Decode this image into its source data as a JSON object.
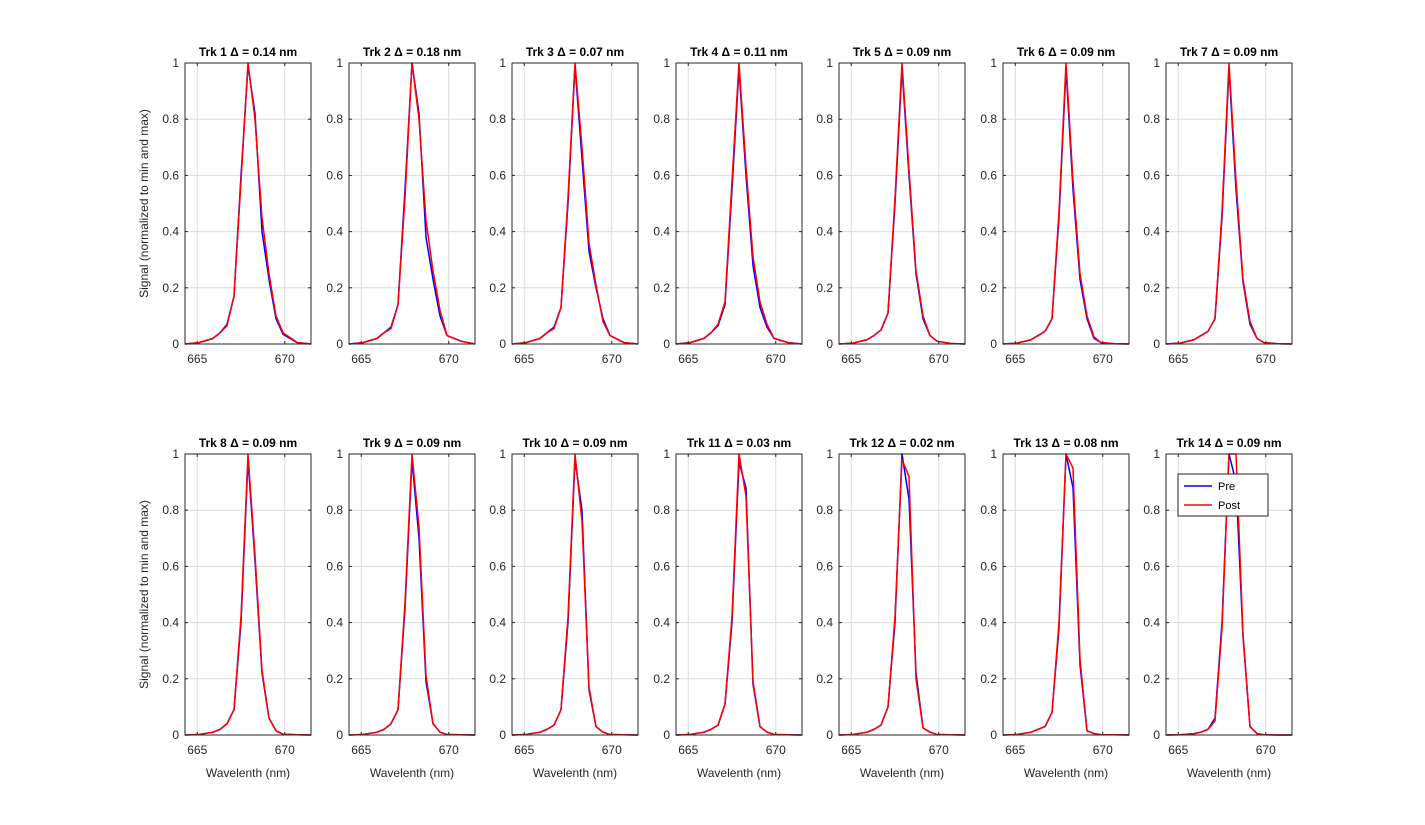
{
  "chart_data": {
    "type": "line",
    "layout": "small-multiples 2 rows x 7 columns",
    "shared": {
      "xlabel": "Wavelenth (nm)",
      "ylabel": "Signal (normalized to min and max)",
      "xlim": [
        664.3,
        671.5
      ],
      "ylim": [
        0,
        1
      ],
      "xticks": [
        665,
        670
      ],
      "yticks": [
        0,
        0.2,
        0.4,
        0.6,
        0.8,
        1
      ],
      "ytick_labels": [
        "0",
        "0.2",
        "0.4",
        "0.6",
        "0.8",
        "1"
      ],
      "grid": true,
      "x": [
        664.3,
        665.1,
        665.9,
        666.3,
        666.7,
        667.1,
        667.5,
        667.9,
        668.3,
        668.7,
        669.1,
        669.5,
        669.9,
        670.7,
        671.5
      ]
    },
    "series_colors": {
      "Pre": "#0000ff",
      "Post": "#ff0000"
    },
    "legend": {
      "entries": [
        "Pre",
        "Post"
      ],
      "placement": "top-right of panel 14"
    },
    "panels": [
      {
        "title": "Trk 1 Δ = 0.14 nm",
        "pre": [
          0,
          0.005,
          0.02,
          0.04,
          0.07,
          0.17,
          0.6,
          0.99,
          0.82,
          0.4,
          0.23,
          0.09,
          0.035,
          0.005,
          0
        ],
        "post": [
          0,
          0.005,
          0.02,
          0.04,
          0.065,
          0.17,
          0.58,
          1.0,
          0.8,
          0.45,
          0.25,
          0.1,
          0.04,
          0.006,
          0
        ]
      },
      {
        "title": "Trk 2 Δ = 0.18 nm",
        "pre": [
          0,
          0.005,
          0.02,
          0.04,
          0.06,
          0.14,
          0.55,
          1.0,
          0.82,
          0.38,
          0.23,
          0.1,
          0.03,
          0.01,
          0
        ],
        "post": [
          0,
          0.005,
          0.02,
          0.04,
          0.055,
          0.14,
          0.52,
          1.0,
          0.8,
          0.44,
          0.26,
          0.12,
          0.03,
          0.01,
          0
        ]
      },
      {
        "title": "Trk 3 Δ = 0.07 nm",
        "pre": [
          0,
          0.005,
          0.02,
          0.04,
          0.06,
          0.13,
          0.5,
          0.99,
          0.66,
          0.33,
          0.2,
          0.09,
          0.03,
          0.005,
          0
        ],
        "post": [
          0,
          0.005,
          0.02,
          0.04,
          0.055,
          0.13,
          0.52,
          1.0,
          0.7,
          0.36,
          0.21,
          0.08,
          0.03,
          0.005,
          0
        ]
      },
      {
        "title": "Trk 4 Δ = 0.11 nm",
        "pre": [
          0,
          0.005,
          0.02,
          0.04,
          0.065,
          0.14,
          0.55,
          0.98,
          0.6,
          0.28,
          0.13,
          0.06,
          0.02,
          0.005,
          0
        ],
        "post": [
          0,
          0.005,
          0.02,
          0.04,
          0.07,
          0.15,
          0.58,
          1.0,
          0.63,
          0.31,
          0.15,
          0.07,
          0.02,
          0.005,
          0
        ]
      },
      {
        "title": "Trk 5 Δ = 0.09 nm",
        "pre": [
          0,
          0.003,
          0.015,
          0.03,
          0.05,
          0.11,
          0.5,
          0.98,
          0.6,
          0.25,
          0.09,
          0.03,
          0.01,
          0.002,
          0
        ],
        "post": [
          0,
          0.003,
          0.015,
          0.03,
          0.05,
          0.11,
          0.52,
          1.0,
          0.62,
          0.26,
          0.1,
          0.03,
          0.01,
          0.002,
          0
        ]
      },
      {
        "title": "Trk 6 Δ = 0.09 nm",
        "pre": [
          0,
          0.003,
          0.015,
          0.03,
          0.045,
          0.09,
          0.45,
          0.98,
          0.55,
          0.23,
          0.09,
          0.02,
          0.005,
          0.001,
          0
        ],
        "post": [
          0,
          0.003,
          0.015,
          0.03,
          0.045,
          0.09,
          0.47,
          1.0,
          0.58,
          0.25,
          0.1,
          0.025,
          0.005,
          0.001,
          0
        ]
      },
      {
        "title": "Trk 7 Δ = 0.09 nm",
        "pre": [
          0,
          0.003,
          0.015,
          0.03,
          0.045,
          0.09,
          0.45,
          0.98,
          0.55,
          0.22,
          0.07,
          0.02,
          0.005,
          0.001,
          0
        ],
        "post": [
          0,
          0.003,
          0.015,
          0.03,
          0.045,
          0.09,
          0.47,
          1.0,
          0.58,
          0.23,
          0.08,
          0.02,
          0.005,
          0.001,
          0
        ]
      },
      {
        "title": "Trk 8 Δ = 0.09 nm",
        "pre": [
          0,
          0.002,
          0.01,
          0.02,
          0.04,
          0.09,
          0.4,
          0.98,
          0.62,
          0.22,
          0.06,
          0.015,
          0.003,
          0.001,
          0
        ],
        "post": [
          0,
          0.002,
          0.01,
          0.02,
          0.04,
          0.09,
          0.42,
          1.0,
          0.64,
          0.23,
          0.06,
          0.015,
          0.003,
          0.001,
          0
        ]
      },
      {
        "title": "Trk 9 Δ = 0.09 nm",
        "pre": [
          0,
          0.002,
          0.01,
          0.02,
          0.04,
          0.09,
          0.45,
          0.98,
          0.7,
          0.19,
          0.04,
          0.01,
          0.002,
          0.001,
          0
        ],
        "post": [
          0,
          0.002,
          0.01,
          0.02,
          0.04,
          0.09,
          0.47,
          1.0,
          0.74,
          0.21,
          0.04,
          0.01,
          0.002,
          0.001,
          0
        ]
      },
      {
        "title": "Trk 10 Δ = 0.09 nm",
        "pre": [
          0,
          0.002,
          0.01,
          0.02,
          0.035,
          0.09,
          0.4,
          0.98,
          0.8,
          0.16,
          0.03,
          0.01,
          0.002,
          0.001,
          0
        ],
        "post": [
          0,
          0.002,
          0.01,
          0.02,
          0.035,
          0.09,
          0.42,
          1.0,
          0.76,
          0.17,
          0.03,
          0.01,
          0.002,
          0.001,
          0
        ]
      },
      {
        "title": "Trk 11 Δ = 0.03 nm",
        "pre": [
          0,
          0.002,
          0.01,
          0.02,
          0.035,
          0.11,
          0.4,
          0.97,
          0.88,
          0.18,
          0.03,
          0.01,
          0.002,
          0.001,
          0
        ],
        "post": [
          0,
          0.002,
          0.01,
          0.02,
          0.035,
          0.11,
          0.42,
          1.0,
          0.85,
          0.19,
          0.03,
          0.01,
          0.002,
          0.001,
          0
        ]
      },
      {
        "title": "Trk 12 Δ = 0.02 nm",
        "pre": [
          0,
          0.002,
          0.01,
          0.02,
          0.035,
          0.1,
          0.4,
          1.0,
          0.84,
          0.22,
          0.025,
          0.01,
          0.002,
          0.001,
          0
        ],
        "post": [
          0,
          0.002,
          0.01,
          0.02,
          0.035,
          0.1,
          0.42,
          0.98,
          0.92,
          0.2,
          0.025,
          0.01,
          0.002,
          0.001,
          0
        ]
      },
      {
        "title": "Trk 13 Δ = 0.08 nm",
        "pre": [
          0,
          0.002,
          0.01,
          0.02,
          0.03,
          0.08,
          0.38,
          1.0,
          0.88,
          0.25,
          0.015,
          0.005,
          0.001,
          0.001,
          0
        ],
        "post": [
          0,
          0.002,
          0.01,
          0.02,
          0.03,
          0.08,
          0.4,
          1.0,
          0.95,
          0.27,
          0.015,
          0.005,
          0.001,
          0.001,
          0
        ]
      },
      {
        "title": "Trk 14 Δ = 0.09 nm",
        "pre": [
          0,
          0.001,
          0.005,
          0.01,
          0.02,
          0.06,
          0.4,
          1.0,
          0.9,
          0.35,
          0.03,
          0.005,
          0.001,
          0.0,
          0
        ],
        "post": [
          0,
          0.001,
          0.005,
          0.01,
          0.02,
          0.05,
          0.38,
          1.0,
          1.0,
          0.36,
          0.03,
          0.005,
          0.001,
          0.0,
          0
        ]
      }
    ]
  }
}
